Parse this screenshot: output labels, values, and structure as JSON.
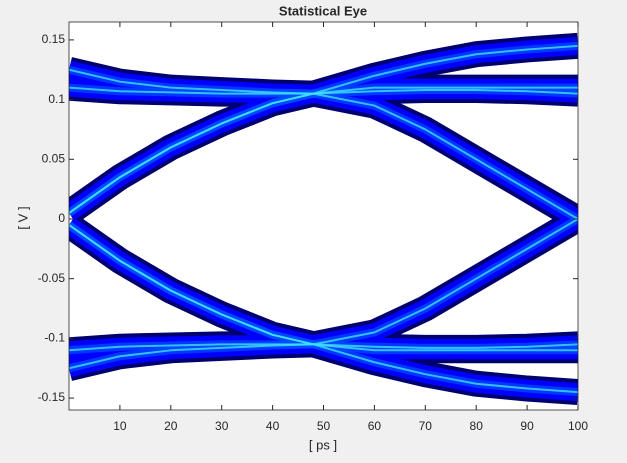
{
  "chart_data": {
    "type": "eye",
    "title": "Statistical Eye",
    "x_label": "[ ps ]",
    "y_label": "[ V ]",
    "xlim": [
      0,
      100
    ],
    "xticks": [
      10,
      20,
      30,
      40,
      50,
      60,
      70,
      80,
      90,
      100
    ],
    "ylim": [
      -0.16,
      0.165
    ],
    "yticks": [
      -0.15,
      -0.1,
      -0.05,
      0,
      0.05,
      0.1,
      0.15
    ],
    "x": [
      0,
      10,
      20,
      30,
      40,
      48,
      60,
      70,
      80,
      90,
      100
    ],
    "series": [
      {
        "color": "#0000ff",
        "values": [
          0.125,
          0.115,
          0.11,
          0.108,
          0.106,
          0.105,
          0.12,
          0.13,
          0.138,
          0.142,
          0.145
        ]
      },
      {
        "color": "#0000ff",
        "values": [
          0.11,
          0.107,
          0.106,
          0.105,
          0.105,
          0.105,
          0.107,
          0.108,
          0.108,
          0.107,
          0.105
        ]
      },
      {
        "color": "#0000ff",
        "values": [
          0.005,
          0.035,
          0.06,
          0.08,
          0.097,
          0.105,
          0.095,
          0.075,
          0.05,
          0.025,
          0
        ]
      },
      {
        "color": "#0000ff",
        "values": [
          0.005,
          0.035,
          0.06,
          0.08,
          0.097,
          0.105,
          0.11,
          0.11,
          0.11,
          0.11,
          0.11
        ]
      },
      {
        "color": "#0000ff",
        "values": [
          -0.125,
          -0.115,
          -0.11,
          -0.108,
          -0.106,
          -0.105,
          -0.12,
          -0.13,
          -0.138,
          -0.142,
          -0.145
        ]
      },
      {
        "color": "#0000ff",
        "values": [
          -0.11,
          -0.107,
          -0.106,
          -0.105,
          -0.105,
          -0.105,
          -0.107,
          -0.108,
          -0.108,
          -0.107,
          -0.105
        ]
      },
      {
        "color": "#0000ff",
        "values": [
          -0.005,
          -0.035,
          -0.06,
          -0.08,
          -0.097,
          -0.105,
          -0.095,
          -0.075,
          -0.05,
          -0.025,
          0
        ]
      },
      {
        "color": "#0000ff",
        "values": [
          -0.005,
          -0.035,
          -0.06,
          -0.08,
          -0.097,
          -0.105,
          -0.11,
          -0.11,
          -0.11,
          -0.11,
          -0.11
        ]
      }
    ]
  }
}
